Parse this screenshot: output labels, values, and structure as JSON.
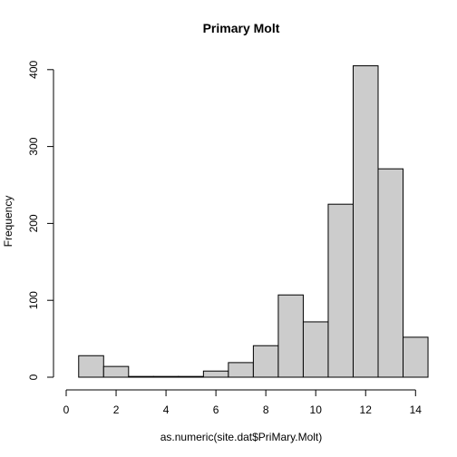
{
  "chart_data": {
    "type": "bar",
    "title": "Primary Molt",
    "xlabel": "as.numeric(site.dat$PriMary.Molt)",
    "ylabel": "Frequency",
    "bin_edges": [
      0.5,
      1.5,
      2.5,
      3.5,
      4.5,
      5.5,
      6.5,
      7.5,
      8.5,
      9.5,
      10.5,
      11.5,
      12.5,
      13.5,
      14.5
    ],
    "values": [
      28,
      14,
      1,
      1,
      1,
      8,
      19,
      41,
      107,
      72,
      225,
      405,
      271,
      52
    ],
    "xlim": [
      0,
      14.5
    ],
    "ylim": [
      0,
      400
    ],
    "x_ticks": [
      "0",
      "2",
      "4",
      "6",
      "8",
      "10",
      "12",
      "14"
    ],
    "y_ticks": [
      "0",
      "100",
      "200",
      "300",
      "400"
    ],
    "grid": false,
    "bar_color": "#cccccc"
  }
}
